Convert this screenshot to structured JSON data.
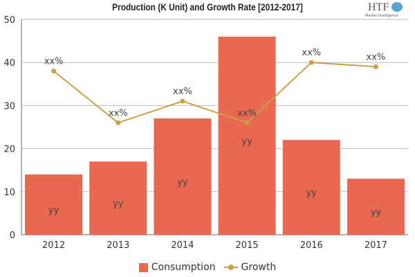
{
  "chart_data": {
    "type": "bar",
    "title": "Production (K Unit) and Growth Rate [2012-2017]",
    "categories": [
      "2012",
      "2013",
      "2014",
      "2015",
      "2016",
      "2017"
    ],
    "ylim": [
      0,
      50
    ],
    "yticks": [
      0,
      10,
      20,
      30,
      40,
      50
    ],
    "grid": true,
    "legend_position": "bottom",
    "series": [
      {
        "name": "Consumption",
        "type": "bar",
        "color": "#E8694F",
        "values": [
          14,
          17,
          27,
          46,
          22,
          13
        ],
        "labels": [
          "yy",
          "yy",
          "yy",
          "yy",
          "yy",
          "yy"
        ]
      },
      {
        "name": "Growth",
        "type": "line",
        "color": "#C9A04A",
        "values": [
          38,
          26,
          31,
          26,
          40,
          39
        ],
        "labels": [
          "xx%",
          "xx%",
          "xx%",
          "xx%",
          "xx%",
          "xx%"
        ]
      }
    ]
  },
  "logo": {
    "text": "HTF",
    "subtext": "Market Intelligence"
  }
}
